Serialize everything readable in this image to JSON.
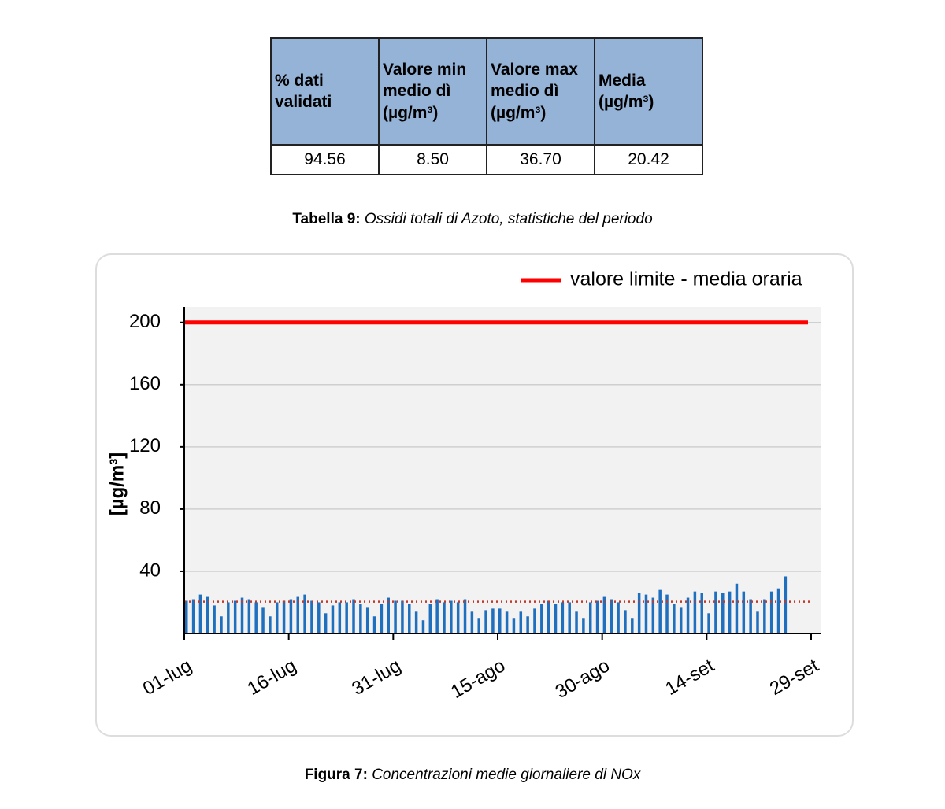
{
  "table": {
    "headers": [
      "% dati validati",
      "Valore min medio dì (µg/m³)",
      "Valore max medio dì (µg/m³)",
      "Media (µg/m³)"
    ],
    "rows": [
      [
        "94.56",
        "8.50",
        "36.70",
        "20.42"
      ]
    ]
  },
  "table_caption": {
    "label": "Tabella 9:",
    "text": "Ossidi totali di Azoto, statistiche del periodo"
  },
  "chart_data": {
    "type": "bar",
    "y_label": "[µg/m³]",
    "categories": [
      "01-lug",
      null,
      null,
      null,
      null,
      null,
      null,
      null,
      null,
      null,
      null,
      null,
      null,
      null,
      null,
      "16-lug",
      null,
      null,
      null,
      null,
      null,
      null,
      null,
      null,
      null,
      null,
      null,
      null,
      null,
      null,
      "31-lug",
      null,
      null,
      null,
      null,
      null,
      null,
      null,
      null,
      null,
      null,
      null,
      null,
      null,
      null,
      "15-ago",
      null,
      null,
      null,
      null,
      null,
      null,
      null,
      null,
      null,
      null,
      null,
      null,
      null,
      null,
      "30-ago",
      null,
      null,
      null,
      null,
      null,
      null,
      null,
      null,
      null,
      null,
      null,
      null,
      null,
      null,
      "14-set",
      null,
      null,
      null,
      null,
      null,
      null,
      null,
      null,
      null,
      null,
      null,
      null,
      null,
      null,
      "29-set"
    ],
    "values": [
      21,
      22,
      25,
      24,
      18,
      11,
      20,
      21,
      23,
      22,
      20,
      17,
      11,
      20,
      21,
      22,
      24,
      25,
      21,
      20,
      13,
      18,
      20,
      20,
      22,
      19,
      17,
      11,
      19,
      23,
      21,
      21,
      19,
      14,
      8.5,
      19,
      22,
      20,
      21,
      20,
      22,
      14,
      10,
      15,
      16,
      16,
      14,
      10,
      14,
      11,
      16,
      19,
      21,
      19,
      20,
      20,
      14,
      10,
      20,
      21,
      24,
      22,
      20,
      15,
      10,
      26,
      25,
      23,
      28,
      25,
      19,
      17,
      23,
      27,
      26,
      13,
      27,
      26,
      27,
      32,
      27,
      22,
      14,
      22,
      27,
      29,
      36.7,
      null,
      null,
      null,
      null
    ],
    "color": "#1f6fbf",
    "limit_line": {
      "name": "valore limite - media oraria",
      "value": 200,
      "color": "#ff0000"
    },
    "mean_line_color": "#c0392b",
    "ylim": [
      0,
      210
    ],
    "yticks": [
      40,
      80,
      120,
      160,
      200
    ],
    "grid": true
  },
  "figure_caption": {
    "label": "Figura 7:",
    "text": "Concentrazioni medie giornaliere di NOx"
  }
}
